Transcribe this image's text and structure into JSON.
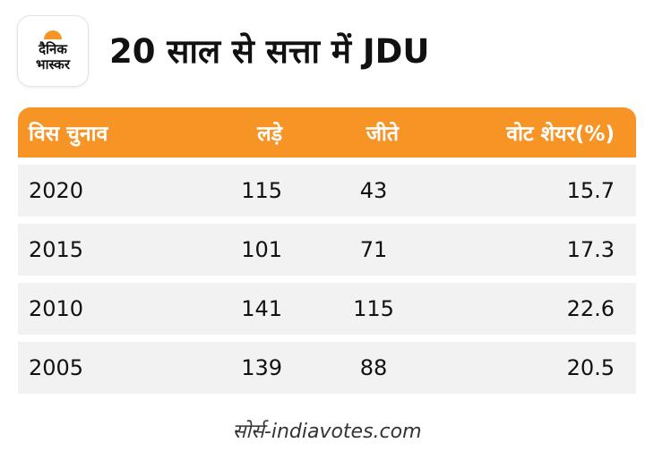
{
  "brand": {
    "logo_line1": "दैनिक",
    "logo_line2": "भास्कर",
    "accent_color": "#f79426"
  },
  "title": "20 साल से सत्ता में JDU",
  "table": {
    "headers": [
      "विस चुनाव",
      "लड़े",
      "जीते",
      "वोट शेयर(%)"
    ],
    "rows": [
      [
        "2020",
        "115",
        "43",
        "15.7"
      ],
      [
        "2015",
        "101",
        "71",
        "17.3"
      ],
      [
        "2010",
        "141",
        "115",
        "22.6"
      ],
      [
        "2005",
        "139",
        "88",
        "20.5"
      ]
    ]
  },
  "source": "सोर्स-indiavotes.com"
}
